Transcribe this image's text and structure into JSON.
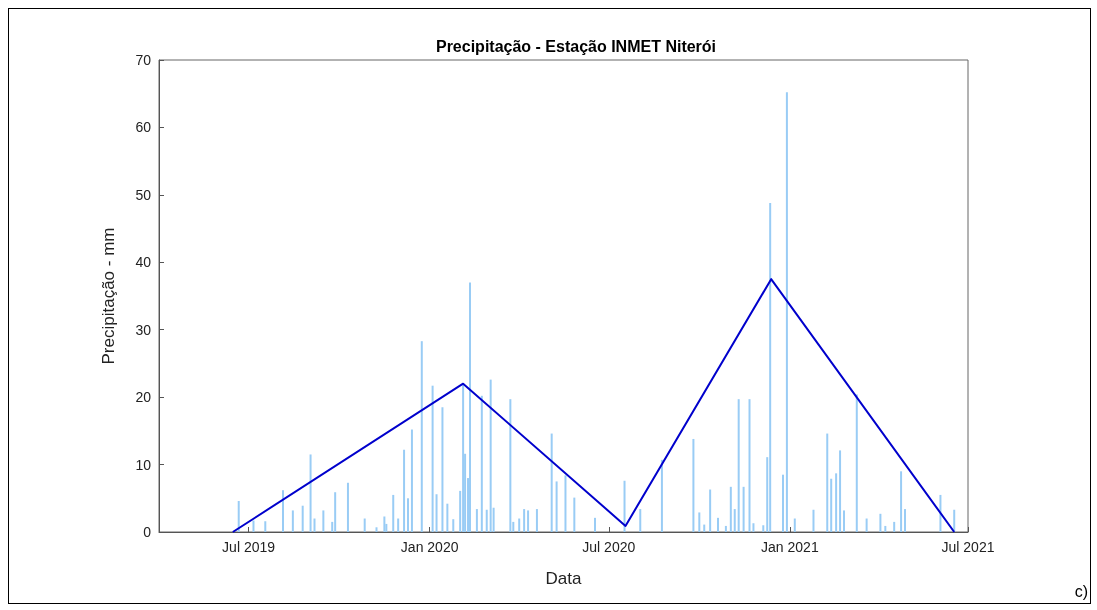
{
  "chart_data": {
    "type": "bar",
    "title": "Precipitação - Estação INMET Niterói",
    "xlabel": "Data",
    "ylabel": "Precipitação - mm",
    "annotations": [
      "c)"
    ],
    "series": [
      {
        "color": "#99ccf5",
        "x": [
          "2019-06-21",
          "2019-07-06",
          "2019-07-18",
          "2019-08-05",
          "2019-08-15",
          "2019-08-25",
          "2019-09-02",
          "2019-09-06",
          "2019-09-15",
          "2019-09-24",
          "2019-09-27",
          "2019-10-10",
          "2019-10-27",
          "2019-11-08",
          "2019-11-16",
          "2019-11-18",
          "2019-11-25",
          "2019-11-30",
          "2019-12-06",
          "2019-12-10",
          "2019-12-14",
          "2019-12-24",
          "2020-01-04",
          "2020-01-08",
          "2020-01-14",
          "2020-01-19",
          "2020-01-25",
          "2020-02-01",
          "2020-02-04",
          "2020-02-06",
          "2020-02-09",
          "2020-02-11",
          "2020-02-18",
          "2020-02-23",
          "2020-02-28",
          "2020-03-03",
          "2020-03-06",
          "2020-03-23",
          "2020-03-26",
          "2020-04-01",
          "2020-04-06",
          "2020-04-10",
          "2020-04-19",
          "2020-05-04",
          "2020-05-09",
          "2020-05-18",
          "2020-05-27",
          "2020-06-17",
          "2020-07-17",
          "2020-08-02",
          "2020-08-24",
          "2020-09-25",
          "2020-10-01",
          "2020-10-06",
          "2020-10-12",
          "2020-10-20",
          "2020-10-28",
          "2020-11-02",
          "2020-11-06",
          "2020-11-10",
          "2020-11-15",
          "2020-11-21",
          "2020-11-25",
          "2020-12-05",
          "2020-12-09",
          "2020-12-12",
          "2020-12-25",
          "2020-12-29",
          "2021-01-06",
          "2021-01-25",
          "2021-02-08",
          "2021-02-12",
          "2021-02-17",
          "2021-02-21",
          "2021-02-25",
          "2021-03-10",
          "2021-03-20",
          "2021-04-03",
          "2021-04-08",
          "2021-04-17",
          "2021-04-24",
          "2021-04-28",
          "2021-06-03",
          "2021-06-17"
        ],
        "values": [
          4.6,
          1.7,
          1.6,
          6.2,
          3.2,
          3.9,
          11.5,
          2.0,
          3.2,
          1.5,
          5.9,
          7.3,
          2.0,
          0.7,
          2.3,
          1.2,
          5.5,
          2.0,
          12.2,
          5.0,
          15.2,
          28.3,
          21.7,
          5.6,
          18.5,
          4.2,
          1.9,
          6.1,
          21.9,
          11.6,
          8.0,
          37.0,
          3.4,
          20.2,
          3.3,
          22.6,
          3.6,
          19.7,
          1.5,
          2.0,
          3.4,
          3.2,
          3.4,
          14.6,
          7.5,
          8.4,
          5.1,
          2.1,
          7.6,
          3.4,
          10.7,
          13.8,
          2.9,
          1.1,
          6.3,
          2.1,
          0.9,
          6.7,
          3.4,
          19.7,
          6.7,
          19.7,
          1.3,
          1.0,
          11.1,
          48.8,
          8.5,
          65.2,
          2.0,
          3.3,
          14.6,
          7.9,
          8.7,
          12.1,
          3.2,
          20.4,
          2.0,
          2.7,
          0.9,
          1.5,
          9.0,
          3.4,
          5.5,
          3.3
        ]
      },
      {
        "type": "line",
        "color": "#0000cc",
        "x": [
          "2019-06-15",
          "2020-02-04",
          "2020-07-18",
          "2020-12-13",
          "2021-06-17"
        ],
        "values": [
          0,
          22,
          0.9,
          37.5,
          0
        ]
      }
    ],
    "xlim": [
      "2019-04-01",
      "2021-07-01"
    ],
    "xticks": [
      {
        "value": "2019-07-01",
        "label": "Jul 2019"
      },
      {
        "value": "2020-01-01",
        "label": "Jan 2020"
      },
      {
        "value": "2020-07-01",
        "label": "Jul 2020"
      },
      {
        "value": "2021-01-01",
        "label": "Jan 2021"
      },
      {
        "value": "2021-07-01",
        "label": "Jul 2021"
      }
    ],
    "ylim": [
      0,
      70
    ],
    "yticks": [
      0,
      10,
      20,
      30,
      40,
      50,
      60,
      70
    ],
    "grid": false
  }
}
